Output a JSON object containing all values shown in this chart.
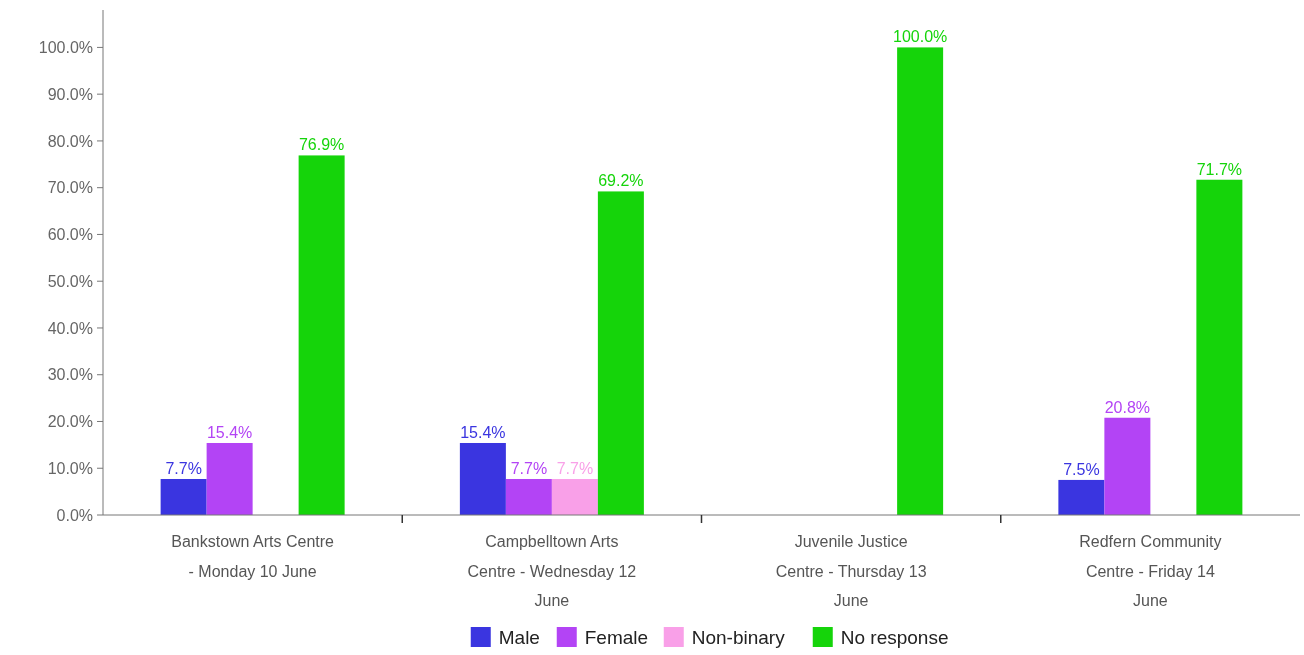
{
  "chart_data": {
    "type": "bar",
    "categories": [
      "Bankstown Arts Centre - Monday 10 June",
      "Campbelltown Arts Centre - Wednesday 12 June",
      "Juvenile Justice Centre - Thursday 13 June",
      "Redfern Community Centre - Friday 14 June"
    ],
    "series": [
      {
        "name": "Male",
        "color": "#3a35e0",
        "values": [
          7.7,
          15.4,
          null,
          7.5
        ],
        "value_labels": [
          "7.7%",
          "15.4%",
          null,
          "7.5%"
        ]
      },
      {
        "name": "Female",
        "color": "#b344f5",
        "values": [
          15.4,
          7.7,
          null,
          20.8
        ],
        "value_labels": [
          "15.4%",
          "7.7%",
          null,
          "20.8%"
        ]
      },
      {
        "name": "Non-binary",
        "color": "#f9a0e8",
        "values": [
          null,
          7.7,
          null,
          null
        ],
        "value_labels": [
          null,
          "7.7%",
          null,
          null
        ]
      },
      {
        "name": "No response",
        "color": "#15d40a",
        "values": [
          76.9,
          69.2,
          100,
          71.7
        ],
        "value_labels": [
          "76.9%",
          "69.2%",
          "100.0%",
          "71.7%"
        ]
      }
    ],
    "ylim": [
      0,
      108
    ],
    "yticks": [
      {
        "value": 0,
        "label": "0.0%"
      },
      {
        "value": 10,
        "label": "10.0%"
      },
      {
        "value": 20,
        "label": "20.0%"
      },
      {
        "value": 30,
        "label": "30.0%"
      },
      {
        "value": 40,
        "label": "40.0%"
      },
      {
        "value": 50,
        "label": "50.0%"
      },
      {
        "value": 60,
        "label": "60.0%"
      },
      {
        "value": 70,
        "label": "70.0%"
      },
      {
        "value": 80,
        "label": "80.0%"
      },
      {
        "value": 90,
        "label": "90.0%"
      },
      {
        "value": 100,
        "label": "100.0%"
      }
    ],
    "grid": false,
    "legend": "bottom"
  }
}
